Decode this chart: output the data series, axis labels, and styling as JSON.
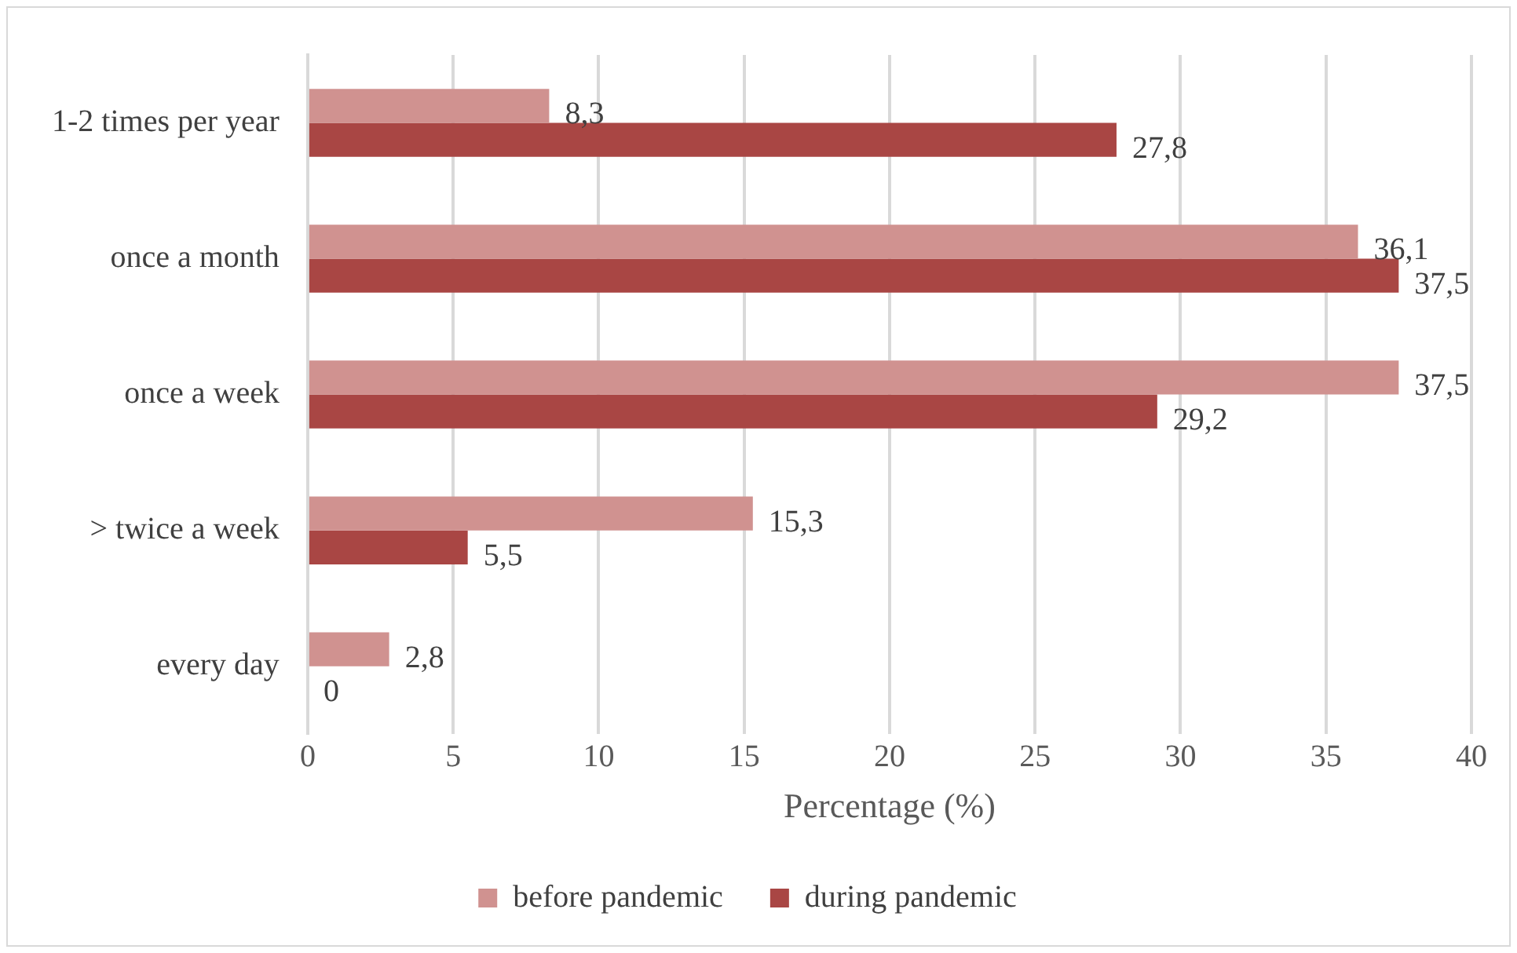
{
  "chart_data": {
    "type": "bar",
    "orientation": "horizontal",
    "xlabel": "Percentage (%)",
    "categories": [
      "1-2 times per year",
      "once a month",
      "once a week",
      "> twice a week",
      "every day"
    ],
    "series": [
      {
        "name": "before pandemic",
        "color": "#d09290",
        "values": [
          8.3,
          36.1,
          37.5,
          15.3,
          2.8
        ],
        "value_labels": [
          "8,3",
          "36,1",
          "37,5",
          "15,3",
          "2,8"
        ]
      },
      {
        "name": "during pandemic",
        "color": "#a94644",
        "values": [
          27.8,
          37.5,
          29.2,
          5.5,
          0
        ],
        "value_labels": [
          "27,8",
          "37,5",
          "29,2",
          "5,5",
          "0"
        ]
      }
    ],
    "xlim": [
      0,
      40
    ],
    "xticks": [
      0,
      5,
      10,
      15,
      20,
      25,
      30,
      35,
      40
    ],
    "grid": "x",
    "legend": "bottom"
  }
}
